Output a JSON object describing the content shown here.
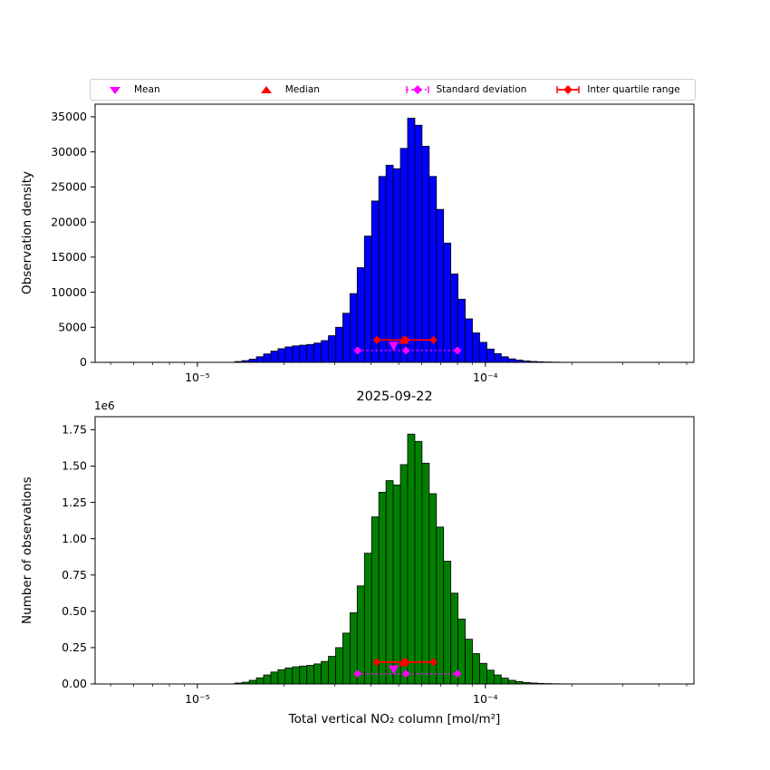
{
  "figure": {
    "title": "2025-09-22",
    "xlabel": "Total vertical NO₂ column [mol/m²]",
    "legend": [
      {
        "label": "Mean",
        "marker": "triangle-down-icon",
        "color": "#ff00ff",
        "line": "none"
      },
      {
        "label": "Median",
        "marker": "triangle-up-icon",
        "color": "#ff0000",
        "line": "none"
      },
      {
        "label": "Standard deviation",
        "marker": "diamond-icon",
        "color": "#ff00ff",
        "line": "dotted"
      },
      {
        "label": "Inter quartile range",
        "marker": "diamond-icon",
        "color": "#ff0000",
        "line": "solid"
      }
    ]
  },
  "chart_data": [
    {
      "type": "bar",
      "subtype": "histogram",
      "ylabel": "Observation density",
      "bar_color": "#0000ff",
      "edge_color": "#000000",
      "xscale": "log",
      "xlim": [
        4.4e-06,
        0.00053
      ],
      "ylim": [
        0,
        36800
      ],
      "grid": false,
      "xticks": [
        1e-05,
        0.0001
      ],
      "xtick_labels": [
        "10⁻⁵",
        "10⁻⁴"
      ],
      "yticks": [
        0,
        5000,
        10000,
        15000,
        20000,
        25000,
        30000,
        35000
      ],
      "ytick_labels": [
        "0",
        "5000",
        "10000",
        "15000",
        "20000",
        "25000",
        "30000",
        "35000"
      ],
      "bin_edges": [
        1.349e-05,
        1.429e-05,
        1.514e-05,
        1.603e-05,
        1.698e-05,
        1.799e-05,
        1.905e-05,
        2.018e-05,
        2.138e-05,
        2.265e-05,
        2.399e-05,
        2.541e-05,
        2.692e-05,
        2.851e-05,
        3.02e-05,
        3.199e-05,
        3.388e-05,
        3.589e-05,
        3.802e-05,
        4.027e-05,
        4.266e-05,
        4.519e-05,
        4.786e-05,
        5.07e-05,
        5.37e-05,
        5.689e-05,
        6.026e-05,
        6.383e-05,
        6.761e-05,
        7.161e-05,
        7.586e-05,
        8.035e-05,
        8.511e-05,
        9.016e-05,
        9.55e-05,
        0.0001012,
        0.0001072,
        0.0001135,
        0.0001202,
        0.0001274,
        0.0001349,
        0.0001429,
        0.0001514,
        0.0001603,
        0.0001698,
        0.0001799,
        0.0001905,
        0.0002018,
        0.0002138
      ],
      "counts": [
        120,
        250,
        450,
        800,
        1200,
        1600,
        1950,
        2200,
        2350,
        2450,
        2550,
        2750,
        3100,
        3800,
        5000,
        7000,
        9800,
        13500,
        18000,
        23000,
        26500,
        28100,
        27600,
        30500,
        34800,
        33800,
        30800,
        26500,
        21800,
        17000,
        12600,
        9000,
        6200,
        4200,
        2850,
        1900,
        1250,
        800,
        500,
        320,
        200,
        130,
        80,
        50,
        30,
        18,
        10,
        6
      ],
      "stats": {
        "mean": 4.8e-05,
        "median": 5.2e-05,
        "q1": 4.2e-05,
        "q3": 6.6e-05,
        "iqr_center": 5.3e-05,
        "std_low": 3.6e-05,
        "std_high": 8e-05,
        "std_center": 5.3e-05,
        "iqr_line_y": 3200,
        "std_line_y": 1700,
        "mean_marker_y": 2350,
        "median_marker_y": 3200
      }
    },
    {
      "type": "bar",
      "subtype": "histogram",
      "ylabel": "Number of observations",
      "offset_label": "1e6",
      "bar_color": "#008000",
      "edge_color": "#000000",
      "xscale": "log",
      "xlim": [
        4.4e-06,
        0.00053
      ],
      "ylim": [
        0,
        1840000
      ],
      "grid": false,
      "xticks": [
        1e-05,
        0.0001
      ],
      "xtick_labels": [
        "10⁻⁵",
        "10⁻⁴"
      ],
      "yticks": [
        0,
        250000,
        500000,
        750000,
        1000000,
        1250000,
        1500000,
        1750000
      ],
      "ytick_labels": [
        "0.00",
        "0.25",
        "0.50",
        "0.75",
        "1.00",
        "1.25",
        "1.50",
        "1.75"
      ],
      "bin_edges": [
        1.349e-05,
        1.429e-05,
        1.514e-05,
        1.603e-05,
        1.698e-05,
        1.799e-05,
        1.905e-05,
        2.018e-05,
        2.138e-05,
        2.265e-05,
        2.399e-05,
        2.541e-05,
        2.692e-05,
        2.851e-05,
        3.02e-05,
        3.199e-05,
        3.388e-05,
        3.589e-05,
        3.802e-05,
        4.027e-05,
        4.266e-05,
        4.519e-05,
        4.786e-05,
        5.07e-05,
        5.37e-05,
        5.689e-05,
        6.026e-05,
        6.383e-05,
        6.761e-05,
        7.161e-05,
        7.586e-05,
        8.035e-05,
        8.511e-05,
        9.016e-05,
        9.55e-05,
        0.0001012,
        0.0001072,
        0.0001135,
        0.0001202,
        0.0001274,
        0.0001349,
        0.0001429,
        0.0001514,
        0.0001603,
        0.0001698,
        0.0001799,
        0.0001905,
        0.0002018,
        0.0002138
      ],
      "counts": [
        6000,
        12000,
        25000,
        42000,
        62000,
        82000,
        98000,
        110000,
        118000,
        123000,
        128000,
        138000,
        155000,
        190000,
        250000,
        350000,
        490000,
        675000,
        900000,
        1150000,
        1320000,
        1400000,
        1370000,
        1510000,
        1720000,
        1670000,
        1520000,
        1310000,
        1080000,
        845000,
        625000,
        447000,
        308000,
        209000,
        142000,
        95000,
        62000,
        40000,
        25000,
        16000,
        10000,
        6500,
        4000,
        2500,
        1500,
        900,
        500,
        300
      ],
      "stats": {
        "mean": 4.8e-05,
        "median": 5.2e-05,
        "q1": 4.2e-05,
        "q3": 6.6e-05,
        "iqr_center": 5.3e-05,
        "std_low": 3.6e-05,
        "std_high": 8e-05,
        "std_center": 5.3e-05,
        "iqr_line_y": 150000,
        "std_line_y": 70000,
        "mean_marker_y": 100000,
        "median_marker_y": 150000
      }
    }
  ]
}
